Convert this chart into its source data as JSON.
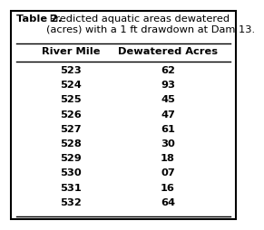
{
  "title_bold": "Table 2.",
  "title_normal": " Predicted aquatic areas dewatered\n(acres) with a 1 ft drawdown at Dam 13.",
  "col1_header": "River Mile",
  "col2_header": "Dewatered Acres",
  "river_miles": [
    "523",
    "524",
    "525",
    "526",
    "527",
    "528",
    "529",
    "530",
    "531",
    "532"
  ],
  "dewatered_acres": [
    "62",
    "93",
    "45",
    "47",
    "61",
    "30",
    "18",
    "07",
    "16",
    "64"
  ],
  "background_color": "#ffffff",
  "border_color": "#000000",
  "text_color": "#000000",
  "title_fontsize": 8.2,
  "header_fontsize": 8.2,
  "data_fontsize": 8.2
}
